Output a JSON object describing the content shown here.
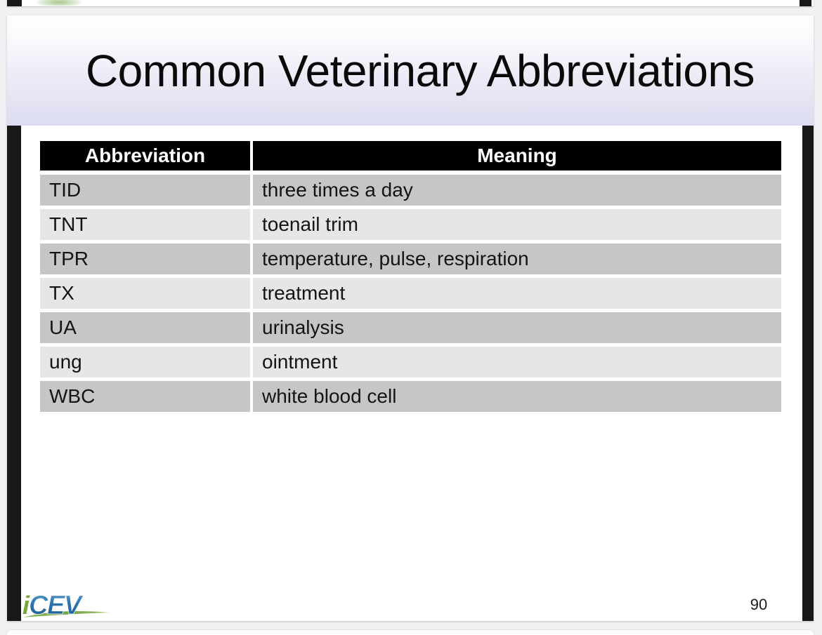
{
  "slide": {
    "title": "Common Veterinary Abbreviations",
    "page_number": "90",
    "table": {
      "headers": [
        "Abbreviation",
        "Meaning"
      ],
      "rows": [
        [
          "TID",
          "three times a day"
        ],
        [
          "TNT",
          "toenail trim"
        ],
        [
          "TPR",
          "temperature, pulse, respiration"
        ],
        [
          "TX",
          "treatment"
        ],
        [
          "UA",
          "urinalysis"
        ],
        [
          "ung",
          "ointment"
        ],
        [
          "WBC",
          "white blood cell"
        ]
      ]
    },
    "logo": {
      "prefix": "i",
      "text": "CEV"
    },
    "colors": {
      "table_header_bg": "#000000",
      "table_header_text": "#ffffff",
      "row_dark": "#c6c6c6",
      "row_light": "#e6e6e6",
      "title_band_top": "#ffffff",
      "title_band_bottom": "#dcdcf0",
      "side_bar": "#181818",
      "logo_blue": "#2a72aa",
      "logo_green": "#76a83e"
    }
  }
}
